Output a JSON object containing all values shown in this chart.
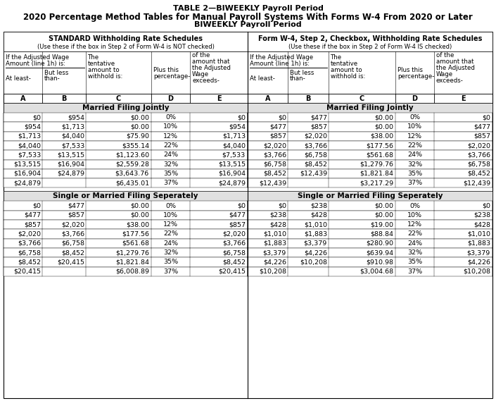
{
  "title1": "TABLE 2—BIWEEKLY Payroll Period",
  "title2": "2020 Percentage Method Tables for Manual Payroll Systems With Forms W-4 From 2020 or Later",
  "title3": "BIWEEKLY Payroll Period",
  "left_header1": "STANDARD Withholding Rate Schedules",
  "left_header2": "(Use these if the box in Step 2 of Form W-4 is NOT checked)",
  "left_header2_bold": "NOT",
  "right_header1": "Form W-4, Step 2, Checkbox, Withholding Rate Schedules",
  "right_header2": "(Use these if the box in Step 2 of Form W-4 IS checked)",
  "right_header2_bold": "IS",
  "col_letters": [
    "A",
    "B",
    "C",
    "D",
    "E"
  ],
  "married_label": "Married Filing Jointly",
  "single_label": "Single or Married Filing Seperately",
  "left_married": [
    [
      "$0",
      "$954",
      "$0.00",
      "0%",
      "$0"
    ],
    [
      "$954",
      "$1,713",
      "$0.00",
      "10%",
      "$954"
    ],
    [
      "$1,713",
      "$4,040",
      "$75.90",
      "12%",
      "$1,713"
    ],
    [
      "$4,040",
      "$7,533",
      "$355.14",
      "22%",
      "$4,040"
    ],
    [
      "$7,533",
      "$13,515",
      "$1,123.60",
      "24%",
      "$7,533"
    ],
    [
      "$13,515",
      "$16,904",
      "$2,559.28",
      "32%",
      "$13,515"
    ],
    [
      "$16,904",
      "$24,879",
      "$3,643.76",
      "35%",
      "$16,904"
    ],
    [
      "$24,879",
      "",
      "$6,435.01",
      "37%",
      "$24,879"
    ]
  ],
  "right_married": [
    [
      "$0",
      "$477",
      "$0.00",
      "0%",
      "$0"
    ],
    [
      "$477",
      "$857",
      "$0.00",
      "10%",
      "$477"
    ],
    [
      "$857",
      "$2,020",
      "$38.00",
      "12%",
      "$857"
    ],
    [
      "$2,020",
      "$3,766",
      "$177.56",
      "22%",
      "$2,020"
    ],
    [
      "$3,766",
      "$6,758",
      "$561.68",
      "24%",
      "$3,766"
    ],
    [
      "$6,758",
      "$8,452",
      "$1,279.76",
      "32%",
      "$6,758"
    ],
    [
      "$8,452",
      "$12,439",
      "$1,821.84",
      "35%",
      "$8,452"
    ],
    [
      "$12,439",
      "",
      "$3,217.29",
      "37%",
      "$12,439"
    ]
  ],
  "left_single": [
    [
      "$0",
      "$477",
      "$0.00",
      "0%",
      "$0"
    ],
    [
      "$477",
      "$857",
      "$0.00",
      "10%",
      "$477"
    ],
    [
      "$857",
      "$2,020",
      "$38.00",
      "12%",
      "$857"
    ],
    [
      "$2,020",
      "$3,766",
      "$177.56",
      "22%",
      "$2,020"
    ],
    [
      "$3,766",
      "$6,758",
      "$561.68",
      "24%",
      "$3,766"
    ],
    [
      "$6,758",
      "$8,452",
      "$1,279.76",
      "32%",
      "$6,758"
    ],
    [
      "$8,452",
      "$20,415",
      "$1,821.84",
      "35%",
      "$8,452"
    ],
    [
      "$20,415",
      "",
      "$6,008.89",
      "37%",
      "$20,415"
    ]
  ],
  "right_single": [
    [
      "$0",
      "$238",
      "$0.00",
      "0%",
      "$0"
    ],
    [
      "$238",
      "$428",
      "$0.00",
      "10%",
      "$238"
    ],
    [
      "$428",
      "$1,010",
      "$19.00",
      "12%",
      "$428"
    ],
    [
      "$1,010",
      "$1,883",
      "$88.84",
      "22%",
      "$1,010"
    ],
    [
      "$1,883",
      "$3,379",
      "$280.90",
      "24%",
      "$1,883"
    ],
    [
      "$3,379",
      "$4,226",
      "$639.94",
      "32%",
      "$3,379"
    ],
    [
      "$4,226",
      "$10,208",
      "$910.98",
      "35%",
      "$4,226"
    ],
    [
      "$10,208",
      "",
      "$3,004.68",
      "37%",
      "$10,208"
    ]
  ],
  "bg_section": "#e0e0e0",
  "bg_white": "#ffffff"
}
